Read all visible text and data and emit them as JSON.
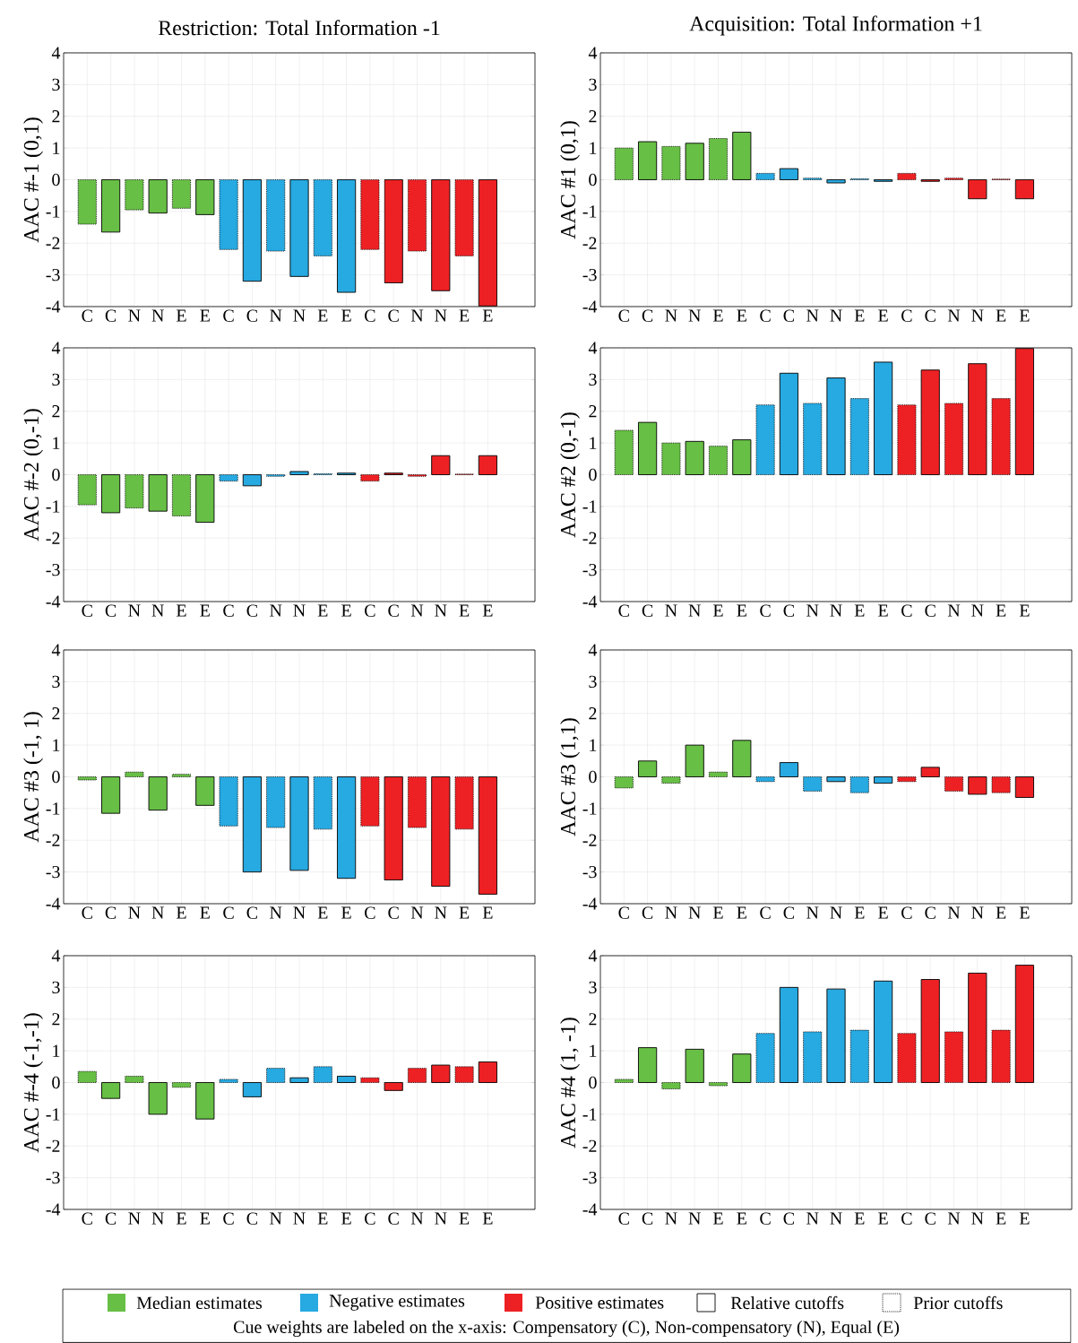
{
  "chart_data": [
    {
      "type": "bar",
      "title": "Restriction: Total Information -1",
      "ylabel": "AAC #-1 (0,1)",
      "categories": [
        "C",
        "C",
        "N",
        "N",
        "E",
        "E",
        "C",
        "C",
        "N",
        "N",
        "E",
        "E",
        "C",
        "C",
        "N",
        "N",
        "E",
        "E"
      ],
      "ylim": [
        -4,
        4
      ],
      "yticks": [
        -4,
        -3,
        -2,
        -1,
        0,
        1,
        2,
        3,
        4
      ],
      "grid": true,
      "series": [
        {
          "color": "#67bf45",
          "line_style": "dotted",
          "values": [
            -1.4,
            null,
            -0.95,
            null,
            -0.9,
            null,
            null,
            null,
            null,
            null,
            null,
            null,
            null,
            null,
            null,
            null,
            null,
            null
          ]
        },
        {
          "color": "#67bf45",
          "line_style": "solid",
          "values": [
            null,
            -1.65,
            null,
            -1.05,
            null,
            -1.1,
            null,
            null,
            null,
            null,
            null,
            null,
            null,
            null,
            null,
            null,
            null,
            null
          ]
        },
        {
          "color": "#27a9e1",
          "line_style": "dotted",
          "values": [
            null,
            null,
            null,
            null,
            null,
            null,
            -2.2,
            null,
            -2.25,
            null,
            -2.4,
            null,
            null,
            null,
            null,
            null,
            null,
            null
          ]
        },
        {
          "color": "#27a9e1",
          "line_style": "solid",
          "values": [
            null,
            null,
            null,
            null,
            null,
            null,
            null,
            -3.2,
            null,
            -3.05,
            null,
            -3.55,
            null,
            null,
            null,
            null,
            null,
            null
          ]
        },
        {
          "color": "#ed2124",
          "line_style": "dotted",
          "values": [
            null,
            null,
            null,
            null,
            null,
            null,
            null,
            null,
            null,
            null,
            null,
            null,
            -2.2,
            null,
            -2.25,
            null,
            -2.4,
            null
          ]
        },
        {
          "color": "#ed2124",
          "line_style": "solid",
          "values": [
            null,
            null,
            null,
            null,
            null,
            null,
            null,
            null,
            null,
            null,
            null,
            null,
            null,
            -3.25,
            null,
            -3.5,
            null,
            -3.98
          ]
        }
      ]
    },
    {
      "type": "bar",
      "title": "Acquisition: Total Information +1",
      "ylabel": "AAC #1 (0,1)",
      "categories": [
        "C",
        "C",
        "N",
        "N",
        "E",
        "E",
        "C",
        "C",
        "N",
        "N",
        "E",
        "E",
        "C",
        "C",
        "N",
        "N",
        "E",
        "E"
      ],
      "ylim": [
        -4,
        4
      ],
      "yticks": [
        -4,
        -3,
        -2,
        -1,
        0,
        1,
        2,
        3,
        4
      ],
      "grid": true,
      "series": [
        {
          "color": "#67bf45",
          "line_style": "dotted",
          "values": [
            1.0,
            null,
            1.05,
            null,
            1.3,
            null,
            null,
            null,
            null,
            null,
            null,
            null,
            null,
            null,
            null,
            null,
            null,
            null
          ]
        },
        {
          "color": "#67bf45",
          "line_style": "solid",
          "values": [
            null,
            1.2,
            null,
            1.15,
            null,
            1.5,
            null,
            null,
            null,
            null,
            null,
            null,
            null,
            null,
            null,
            null,
            null,
            null
          ]
        },
        {
          "color": "#27a9e1",
          "line_style": "dotted",
          "values": [
            null,
            null,
            null,
            null,
            null,
            null,
            0.2,
            null,
            0.05,
            null,
            0.03,
            null,
            null,
            null,
            null,
            null,
            null,
            null
          ]
        },
        {
          "color": "#27a9e1",
          "line_style": "solid",
          "values": [
            null,
            null,
            null,
            null,
            null,
            null,
            null,
            0.35,
            null,
            -0.1,
            null,
            -0.05,
            null,
            null,
            null,
            null,
            null,
            null
          ]
        },
        {
          "color": "#ed2124",
          "line_style": "dotted",
          "values": [
            null,
            null,
            null,
            null,
            null,
            null,
            null,
            null,
            null,
            null,
            null,
            null,
            0.2,
            null,
            0.05,
            null,
            0.02,
            null
          ]
        },
        {
          "color": "#ed2124",
          "line_style": "solid",
          "values": [
            null,
            null,
            null,
            null,
            null,
            null,
            null,
            null,
            null,
            null,
            null,
            null,
            null,
            -0.05,
            null,
            -0.6,
            null,
            -0.6
          ]
        }
      ]
    },
    {
      "type": "bar",
      "ylabel": "AAC #-2 (0,-1)",
      "categories": [
        "C",
        "C",
        "N",
        "N",
        "E",
        "E",
        "C",
        "C",
        "N",
        "N",
        "E",
        "E",
        "C",
        "C",
        "N",
        "N",
        "E",
        "E"
      ],
      "ylim": [
        -4,
        4
      ],
      "yticks": [
        -4,
        -3,
        -2,
        -1,
        0,
        1,
        2,
        3,
        4
      ],
      "grid": true,
      "series": [
        {
          "color": "#67bf45",
          "line_style": "dotted",
          "values": [
            -0.95,
            null,
            -1.05,
            null,
            -1.3,
            null,
            null,
            null,
            null,
            null,
            null,
            null,
            null,
            null,
            null,
            null,
            null,
            null
          ]
        },
        {
          "color": "#67bf45",
          "line_style": "solid",
          "values": [
            null,
            -1.2,
            null,
            -1.15,
            null,
            -1.5,
            null,
            null,
            null,
            null,
            null,
            null,
            null,
            null,
            null,
            null,
            null,
            null
          ]
        },
        {
          "color": "#27a9e1",
          "line_style": "dotted",
          "values": [
            null,
            null,
            null,
            null,
            null,
            null,
            -0.2,
            null,
            -0.05,
            null,
            0.03,
            null,
            null,
            null,
            null,
            null,
            null,
            null
          ]
        },
        {
          "color": "#27a9e1",
          "line_style": "solid",
          "values": [
            null,
            null,
            null,
            null,
            null,
            null,
            null,
            -0.35,
            null,
            0.1,
            null,
            0.05,
            null,
            null,
            null,
            null,
            null,
            null
          ]
        },
        {
          "color": "#ed2124",
          "line_style": "dotted",
          "values": [
            null,
            null,
            null,
            null,
            null,
            null,
            null,
            null,
            null,
            null,
            null,
            null,
            -0.2,
            null,
            -0.05,
            null,
            0.02,
            null
          ]
        },
        {
          "color": "#ed2124",
          "line_style": "solid",
          "values": [
            null,
            null,
            null,
            null,
            null,
            null,
            null,
            null,
            null,
            null,
            null,
            null,
            null,
            0.05,
            null,
            0.6,
            null,
            0.6
          ]
        }
      ]
    },
    {
      "type": "bar",
      "ylabel": "AAC #2 (0,-1)",
      "categories": [
        "C",
        "C",
        "N",
        "N",
        "E",
        "E",
        "C",
        "C",
        "N",
        "N",
        "E",
        "E",
        "C",
        "C",
        "N",
        "N",
        "E",
        "E"
      ],
      "ylim": [
        -4,
        4
      ],
      "yticks": [
        -4,
        -3,
        -2,
        -1,
        0,
        1,
        2,
        3,
        4
      ],
      "grid": true,
      "series": [
        {
          "color": "#67bf45",
          "line_style": "dotted",
          "values": [
            1.4,
            null,
            1.0,
            null,
            0.9,
            null,
            null,
            null,
            null,
            null,
            null,
            null,
            null,
            null,
            null,
            null,
            null,
            null
          ]
        },
        {
          "color": "#67bf45",
          "line_style": "solid",
          "values": [
            null,
            1.65,
            null,
            1.05,
            null,
            1.1,
            null,
            null,
            null,
            null,
            null,
            null,
            null,
            null,
            null,
            null,
            null,
            null
          ]
        },
        {
          "color": "#27a9e1",
          "line_style": "dotted",
          "values": [
            null,
            null,
            null,
            null,
            null,
            null,
            2.2,
            null,
            2.25,
            null,
            2.4,
            null,
            null,
            null,
            null,
            null,
            null,
            null
          ]
        },
        {
          "color": "#27a9e1",
          "line_style": "solid",
          "values": [
            null,
            null,
            null,
            null,
            null,
            null,
            null,
            3.2,
            null,
            3.05,
            null,
            3.55,
            null,
            null,
            null,
            null,
            null,
            null
          ]
        },
        {
          "color": "#ed2124",
          "line_style": "dotted",
          "values": [
            null,
            null,
            null,
            null,
            null,
            null,
            null,
            null,
            null,
            null,
            null,
            null,
            2.2,
            null,
            2.25,
            null,
            2.4,
            null
          ]
        },
        {
          "color": "#ed2124",
          "line_style": "solid",
          "values": [
            null,
            null,
            null,
            null,
            null,
            null,
            null,
            null,
            null,
            null,
            null,
            null,
            null,
            3.3,
            null,
            3.5,
            null,
            3.98
          ]
        }
      ]
    },
    {
      "type": "bar",
      "ylabel": "AAC #3 (-1, 1)",
      "categories": [
        "C",
        "C",
        "N",
        "N",
        "E",
        "E",
        "C",
        "C",
        "N",
        "N",
        "E",
        "E",
        "C",
        "C",
        "N",
        "N",
        "E",
        "E"
      ],
      "ylim": [
        -4,
        4
      ],
      "yticks": [
        -4,
        -3,
        -2,
        -1,
        0,
        1,
        2,
        3,
        4
      ],
      "grid": true,
      "series": [
        {
          "color": "#67bf45",
          "line_style": "dotted",
          "values": [
            -0.1,
            null,
            0.15,
            null,
            0.08,
            null,
            null,
            null,
            null,
            null,
            null,
            null,
            null,
            null,
            null,
            null,
            null,
            null
          ]
        },
        {
          "color": "#67bf45",
          "line_style": "solid",
          "values": [
            null,
            -1.15,
            null,
            -1.05,
            null,
            -0.9,
            null,
            null,
            null,
            null,
            null,
            null,
            null,
            null,
            null,
            null,
            null,
            null
          ]
        },
        {
          "color": "#27a9e1",
          "line_style": "dotted",
          "values": [
            null,
            null,
            null,
            null,
            null,
            null,
            -1.55,
            null,
            -1.6,
            null,
            -1.65,
            null,
            null,
            null,
            null,
            null,
            null,
            null
          ]
        },
        {
          "color": "#27a9e1",
          "line_style": "solid",
          "values": [
            null,
            null,
            null,
            null,
            null,
            null,
            null,
            -3.0,
            null,
            -2.95,
            null,
            -3.2,
            null,
            null,
            null,
            null,
            null,
            null
          ]
        },
        {
          "color": "#ed2124",
          "line_style": "dotted",
          "values": [
            null,
            null,
            null,
            null,
            null,
            null,
            null,
            null,
            null,
            null,
            null,
            null,
            -1.55,
            null,
            -1.6,
            null,
            -1.65,
            null
          ]
        },
        {
          "color": "#ed2124",
          "line_style": "solid",
          "values": [
            null,
            null,
            null,
            null,
            null,
            null,
            null,
            null,
            null,
            null,
            null,
            null,
            null,
            -3.25,
            null,
            -3.45,
            null,
            -3.7
          ]
        }
      ]
    },
    {
      "type": "bar",
      "ylabel": "AAC #3 (1,1)",
      "categories": [
        "C",
        "C",
        "N",
        "N",
        "E",
        "E",
        "C",
        "C",
        "N",
        "N",
        "E",
        "E",
        "C",
        "C",
        "N",
        "N",
        "E",
        "E"
      ],
      "ylim": [
        -4,
        4
      ],
      "yticks": [
        -4,
        -3,
        -2,
        -1,
        0,
        1,
        2,
        3,
        4
      ],
      "grid": true,
      "series": [
        {
          "color": "#67bf45",
          "line_style": "dotted",
          "values": [
            -0.35,
            null,
            -0.2,
            null,
            0.15,
            null,
            null,
            null,
            null,
            null,
            null,
            null,
            null,
            null,
            null,
            null,
            null,
            null
          ]
        },
        {
          "color": "#67bf45",
          "line_style": "solid",
          "values": [
            null,
            0.5,
            null,
            1.0,
            null,
            1.15,
            null,
            null,
            null,
            null,
            null,
            null,
            null,
            null,
            null,
            null,
            null,
            null
          ]
        },
        {
          "color": "#27a9e1",
          "line_style": "dotted",
          "values": [
            null,
            null,
            null,
            null,
            null,
            null,
            -0.15,
            null,
            -0.45,
            null,
            -0.5,
            null,
            null,
            null,
            null,
            null,
            null,
            null
          ]
        },
        {
          "color": "#27a9e1",
          "line_style": "solid",
          "values": [
            null,
            null,
            null,
            null,
            null,
            null,
            null,
            0.45,
            null,
            -0.15,
            null,
            -0.2,
            null,
            null,
            null,
            null,
            null,
            null
          ]
        },
        {
          "color": "#ed2124",
          "line_style": "dotted",
          "values": [
            null,
            null,
            null,
            null,
            null,
            null,
            null,
            null,
            null,
            null,
            null,
            null,
            -0.15,
            null,
            -0.45,
            null,
            -0.5,
            null
          ]
        },
        {
          "color": "#ed2124",
          "line_style": "solid",
          "values": [
            null,
            null,
            null,
            null,
            null,
            null,
            null,
            null,
            null,
            null,
            null,
            null,
            null,
            0.3,
            null,
            -0.55,
            null,
            -0.65
          ]
        }
      ]
    },
    {
      "type": "bar",
      "ylabel": "AAC #-4 (-1,-1)",
      "categories": [
        "C",
        "C",
        "N",
        "N",
        "E",
        "E",
        "C",
        "C",
        "N",
        "N",
        "E",
        "E",
        "C",
        "C",
        "N",
        "N",
        "E",
        "E"
      ],
      "ylim": [
        -4,
        4
      ],
      "yticks": [
        -4,
        -3,
        -2,
        -1,
        0,
        1,
        2,
        3,
        4
      ],
      "grid": true,
      "series": [
        {
          "color": "#67bf45",
          "line_style": "dotted",
          "values": [
            0.35,
            null,
            0.2,
            null,
            -0.15,
            null,
            null,
            null,
            null,
            null,
            null,
            null,
            null,
            null,
            null,
            null,
            null,
            null
          ]
        },
        {
          "color": "#67bf45",
          "line_style": "solid",
          "values": [
            null,
            -0.5,
            null,
            -1.0,
            null,
            -1.15,
            null,
            null,
            null,
            null,
            null,
            null,
            null,
            null,
            null,
            null,
            null,
            null
          ]
        },
        {
          "color": "#27a9e1",
          "line_style": "dotted",
          "values": [
            null,
            null,
            null,
            null,
            null,
            null,
            0.1,
            null,
            0.45,
            null,
            0.5,
            null,
            null,
            null,
            null,
            null,
            null,
            null
          ]
        },
        {
          "color": "#27a9e1",
          "line_style": "solid",
          "values": [
            null,
            null,
            null,
            null,
            null,
            null,
            null,
            -0.45,
            null,
            0.15,
            null,
            0.2,
            null,
            null,
            null,
            null,
            null,
            null
          ]
        },
        {
          "color": "#ed2124",
          "line_style": "dotted",
          "values": [
            null,
            null,
            null,
            null,
            null,
            null,
            null,
            null,
            null,
            null,
            null,
            null,
            0.15,
            null,
            0.45,
            null,
            0.5,
            null
          ]
        },
        {
          "color": "#ed2124",
          "line_style": "solid",
          "values": [
            null,
            null,
            null,
            null,
            null,
            null,
            null,
            null,
            null,
            null,
            null,
            null,
            null,
            -0.25,
            null,
            0.55,
            null,
            0.65
          ]
        }
      ]
    },
    {
      "type": "bar",
      "ylabel": "AAC #4 (1, -1)",
      "categories": [
        "C",
        "C",
        "N",
        "N",
        "E",
        "E",
        "C",
        "C",
        "N",
        "N",
        "E",
        "E",
        "C",
        "C",
        "N",
        "N",
        "E",
        "E"
      ],
      "ylim": [
        -4,
        4
      ],
      "yticks": [
        -4,
        -3,
        -2,
        -1,
        0,
        1,
        2,
        3,
        4
      ],
      "grid": true,
      "series": [
        {
          "color": "#67bf45",
          "line_style": "dotted",
          "values": [
            0.1,
            null,
            -0.2,
            null,
            -0.1,
            null,
            null,
            null,
            null,
            null,
            null,
            null,
            null,
            null,
            null,
            null,
            null,
            null
          ]
        },
        {
          "color": "#67bf45",
          "line_style": "solid",
          "values": [
            null,
            1.1,
            null,
            1.05,
            null,
            0.9,
            null,
            null,
            null,
            null,
            null,
            null,
            null,
            null,
            null,
            null,
            null,
            null
          ]
        },
        {
          "color": "#27a9e1",
          "line_style": "dotted",
          "values": [
            null,
            null,
            null,
            null,
            null,
            null,
            1.55,
            null,
            1.6,
            null,
            1.65,
            null,
            null,
            null,
            null,
            null,
            null,
            null
          ]
        },
        {
          "color": "#27a9e1",
          "line_style": "solid",
          "values": [
            null,
            null,
            null,
            null,
            null,
            null,
            null,
            3.0,
            null,
            2.95,
            null,
            3.2,
            null,
            null,
            null,
            null,
            null,
            null
          ]
        },
        {
          "color": "#ed2124",
          "line_style": "dotted",
          "values": [
            null,
            null,
            null,
            null,
            null,
            null,
            null,
            null,
            null,
            null,
            null,
            null,
            1.55,
            null,
            1.6,
            null,
            1.65,
            null
          ]
        },
        {
          "color": "#ed2124",
          "line_style": "solid",
          "values": [
            null,
            null,
            null,
            null,
            null,
            null,
            null,
            null,
            null,
            null,
            null,
            null,
            null,
            3.25,
            null,
            3.45,
            null,
            3.7
          ]
        }
      ]
    },
    {
      "type": "other",
      "annotations": [
        "Median estimates",
        "Negative estimates",
        "Positive estimates",
        "Relative cutoffs",
        "Prior cutoffs",
        "Cue weights are labeled on the x-axis: Compensatory (C), Non-compensatory (N), Equal (E)"
      ]
    }
  ]
}
